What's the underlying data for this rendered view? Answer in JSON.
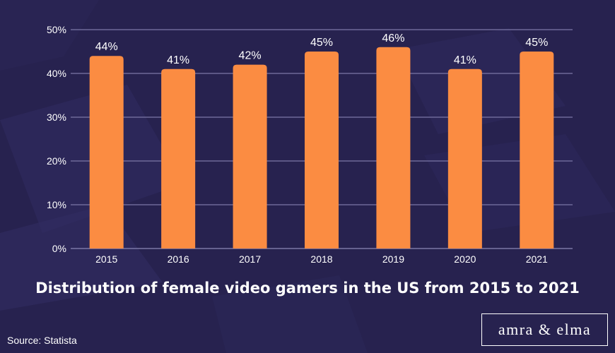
{
  "colors": {
    "background": "#27224f",
    "bar": "#fb8c42",
    "grid": "#7b77a6",
    "text": "#ffffff"
  },
  "title": "Distribution of female video gamers in the US from 2015 to 2021",
  "source": "Source: Statista",
  "brand": "amra & elma",
  "chart_data": {
    "type": "bar",
    "title": "Distribution of female video gamers in the US from 2015 to 2021",
    "xlabel": "",
    "ylabel": "",
    "categories": [
      "2015",
      "2016",
      "2017",
      "2018",
      "2019",
      "2020",
      "2021"
    ],
    "values": [
      44,
      41,
      42,
      45,
      46,
      41,
      45
    ],
    "data_labels": [
      "44%",
      "41%",
      "42%",
      "45%",
      "46%",
      "41%",
      "45%"
    ],
    "ylim": [
      0,
      50
    ],
    "yticks": [
      0,
      10,
      20,
      30,
      40,
      50
    ],
    "ytick_labels": [
      "0%",
      "10%",
      "20%",
      "30%",
      "40%",
      "50%"
    ],
    "grid": true,
    "legend": "none"
  }
}
